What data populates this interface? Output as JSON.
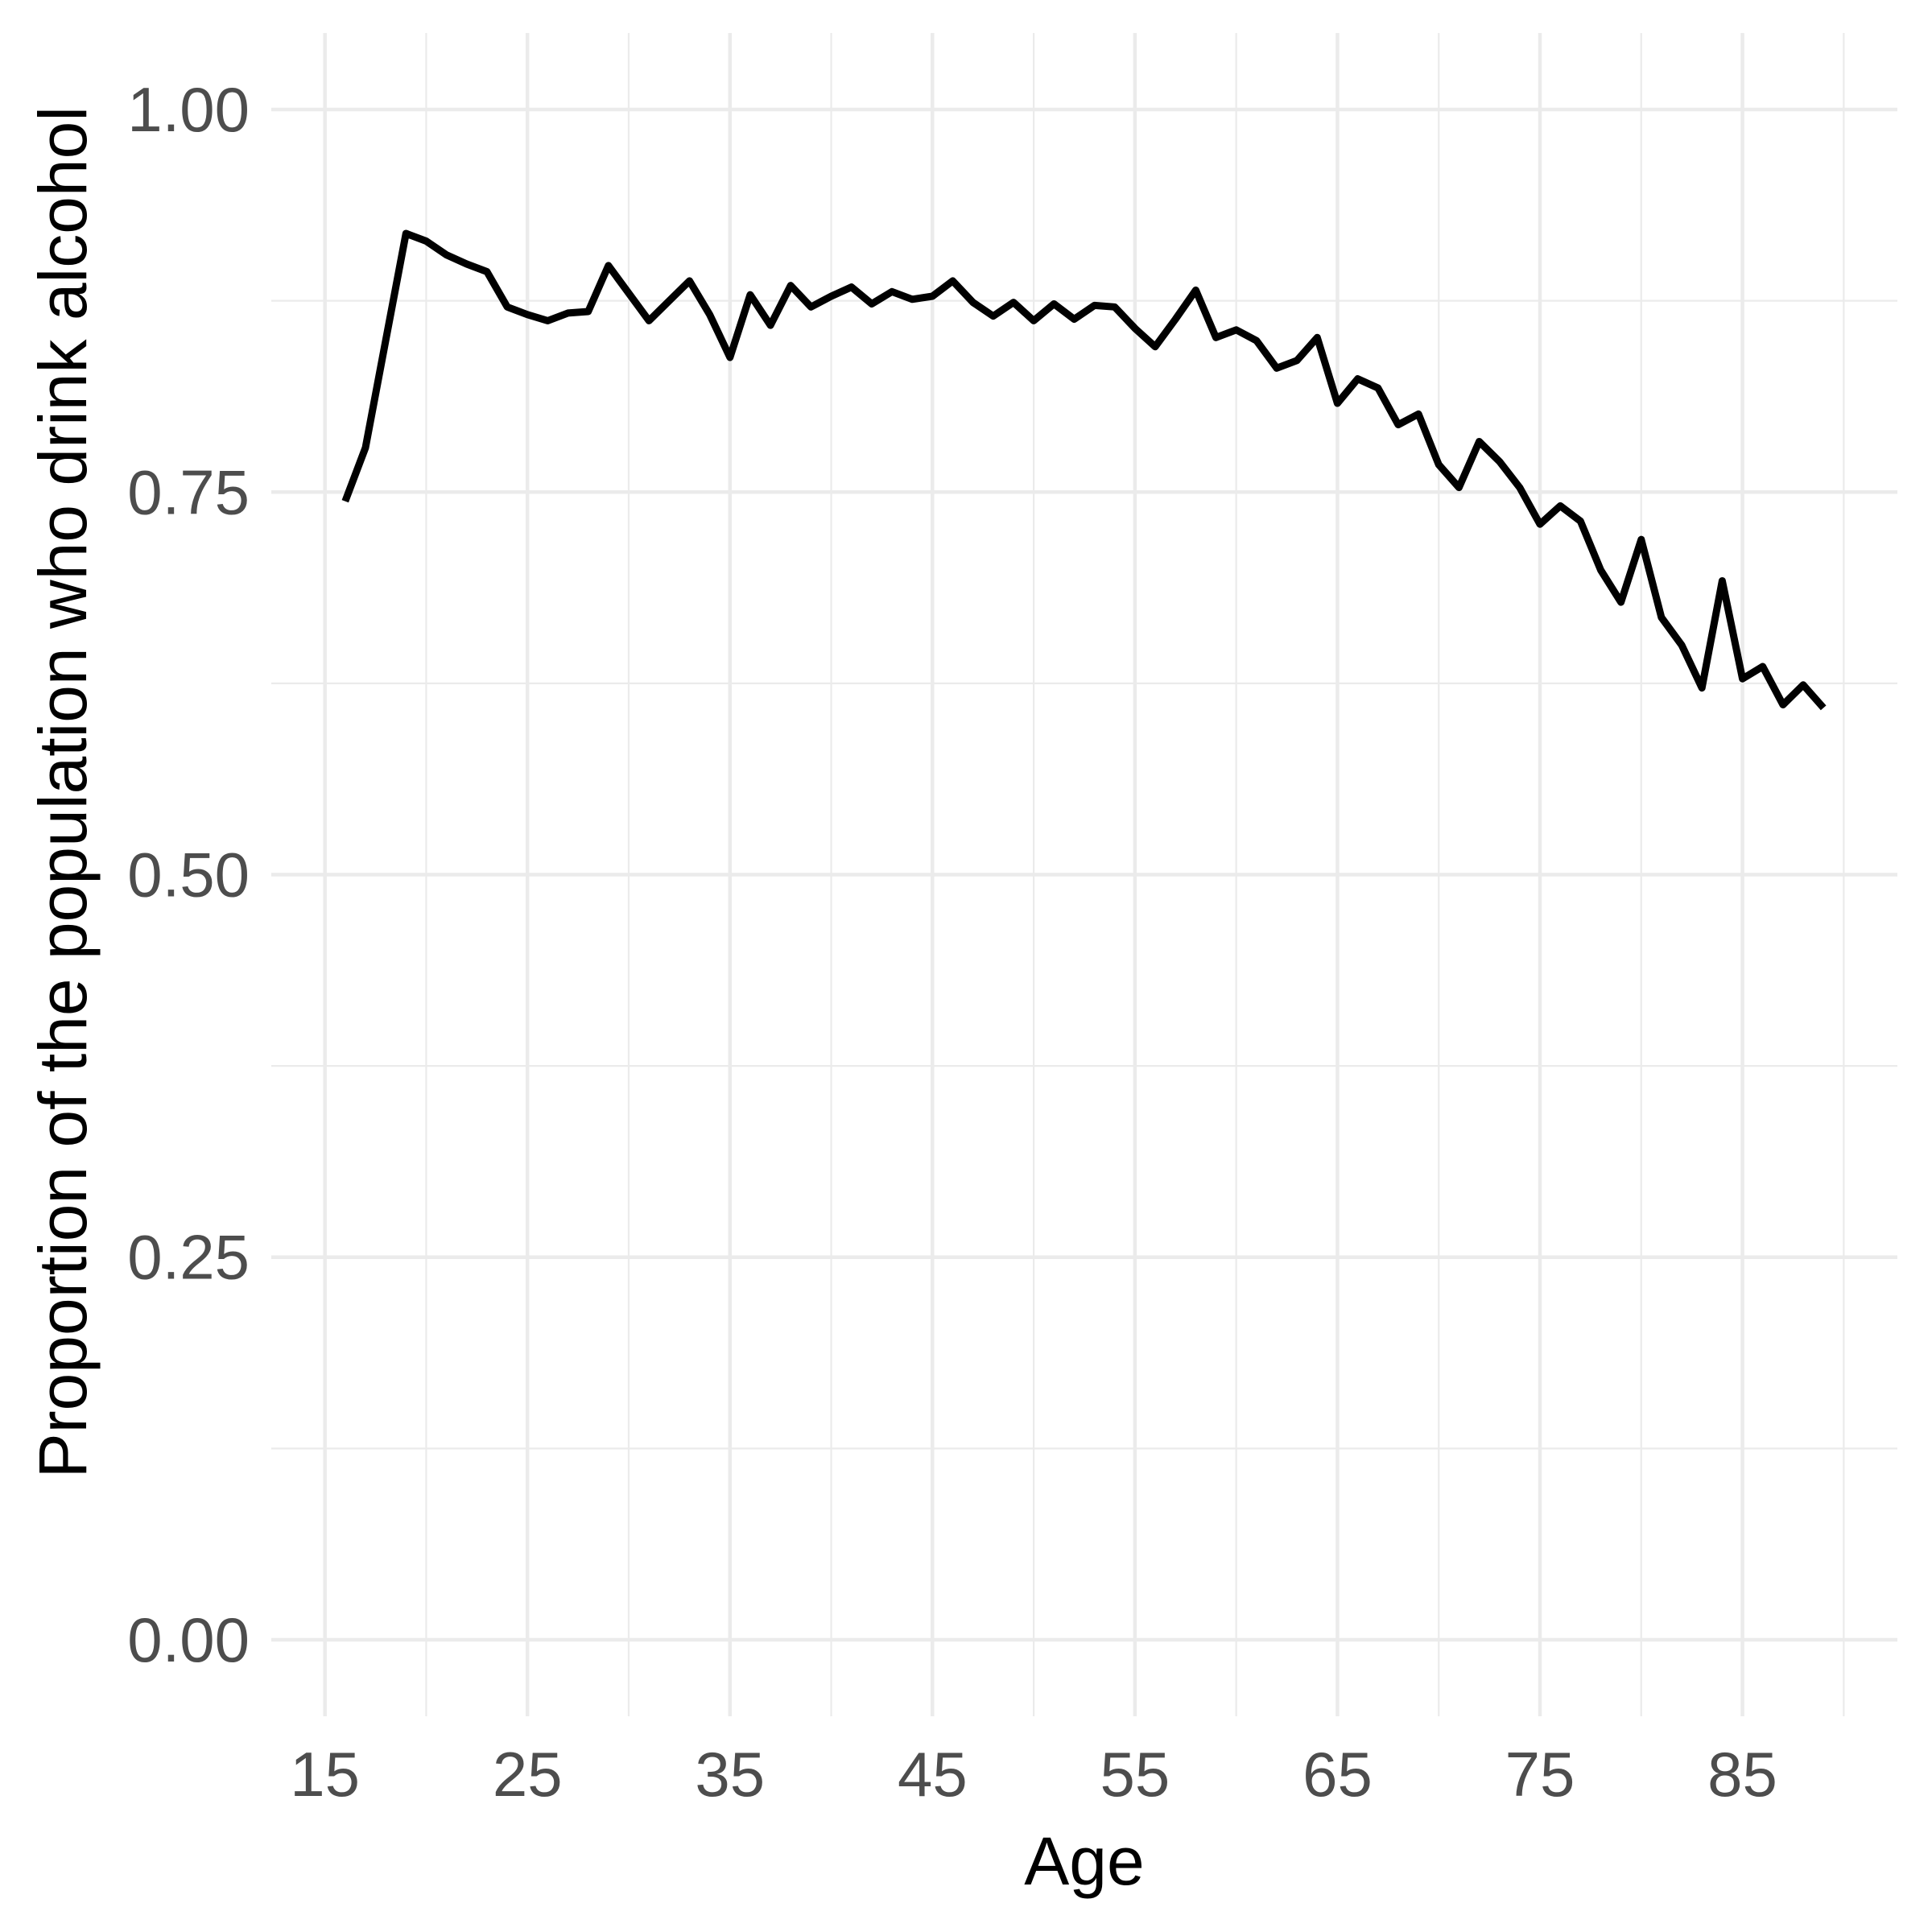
{
  "chart_data": {
    "type": "line",
    "title": "",
    "xlabel": "Age",
    "ylabel": "Proportion of the population who drink alcohol",
    "x": [
      16,
      17,
      18,
      19,
      20,
      21,
      22,
      23,
      24,
      25,
      26,
      27,
      28,
      29,
      30,
      31,
      32,
      33,
      34,
      35,
      36,
      37,
      38,
      39,
      40,
      41,
      42,
      43,
      44,
      45,
      46,
      47,
      48,
      49,
      50,
      51,
      52,
      53,
      54,
      55,
      56,
      57,
      58,
      59,
      60,
      61,
      62,
      63,
      64,
      65,
      66,
      67,
      68,
      69,
      70,
      71,
      72,
      73,
      74,
      75,
      76,
      77,
      78,
      79,
      80,
      81,
      82,
      83,
      84,
      85,
      86,
      87,
      88,
      89
    ],
    "y": [
      0.744,
      0.779,
      0.849,
      0.919,
      0.914,
      0.905,
      0.899,
      0.894,
      0.871,
      0.866,
      0.862,
      0.867,
      0.868,
      0.898,
      0.88,
      0.862,
      0.875,
      0.888,
      0.866,
      0.838,
      0.879,
      0.859,
      0.885,
      0.871,
      0.878,
      0.884,
      0.873,
      0.881,
      0.876,
      0.878,
      0.888,
      0.874,
      0.865,
      0.874,
      0.862,
      0.873,
      0.863,
      0.872,
      0.871,
      0.857,
      0.845,
      0.863,
      0.882,
      0.851,
      0.856,
      0.849,
      0.831,
      0.836,
      0.851,
      0.808,
      0.824,
      0.818,
      0.794,
      0.801,
      0.768,
      0.753,
      0.783,
      0.77,
      0.753,
      0.729,
      0.741,
      0.731,
      0.699,
      0.678,
      0.719,
      0.668,
      0.65,
      0.622,
      0.692,
      0.628,
      0.636,
      0.611,
      0.624,
      0.609
    ],
    "series_name": "proportion-drinking-by-age",
    "xlim": [
      12.35,
      92.65
    ],
    "ylim": [
      -0.05,
      1.05
    ],
    "x_ticks": [
      {
        "value": 15,
        "label": "15"
      },
      {
        "value": 25,
        "label": "25"
      },
      {
        "value": 35,
        "label": "35"
      },
      {
        "value": 45,
        "label": "45"
      },
      {
        "value": 55,
        "label": "55"
      },
      {
        "value": 65,
        "label": "65"
      },
      {
        "value": 75,
        "label": "75"
      },
      {
        "value": 85,
        "label": "85"
      }
    ],
    "y_ticks": [
      {
        "value": 0.0,
        "label": "0.00"
      },
      {
        "value": 0.25,
        "label": "0.25"
      },
      {
        "value": 0.5,
        "label": "0.50"
      },
      {
        "value": 0.75,
        "label": "0.75"
      },
      {
        "value": 1.0,
        "label": "1.00"
      }
    ],
    "x_minor_ticks": [
      20,
      30,
      40,
      50,
      60,
      70,
      80,
      90
    ],
    "y_minor_ticks": [
      0.125,
      0.375,
      0.625,
      0.875
    ],
    "grid": "major-and-minor",
    "legend_position": "none",
    "style": {
      "background_color": "#FFFFFF",
      "grid_color": "#EBEBEB",
      "line_color": "#000000",
      "tick_label_color": "#4D4D4D",
      "axis_title_color": "#000000"
    }
  }
}
